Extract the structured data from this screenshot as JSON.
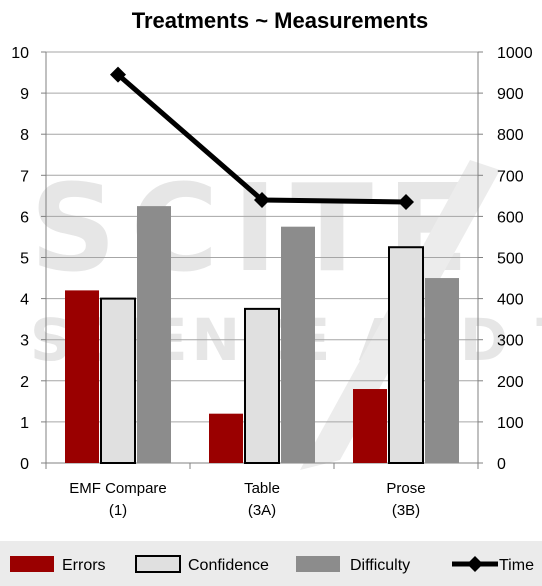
{
  "chart_data": {
    "type": "bar",
    "title": "Treatments ~ Measurements",
    "categories": [
      [
        "EMF Compare",
        "(1)"
      ],
      [
        "Table",
        "(3A)"
      ],
      [
        "Prose",
        "(3B)"
      ]
    ],
    "y_left": {
      "ylim": [
        0,
        10
      ],
      "ticks": [
        0,
        1,
        2,
        3,
        4,
        5,
        6,
        7,
        8,
        9,
        10
      ]
    },
    "y_right": {
      "ylim": [
        0,
        1000
      ],
      "ticks": [
        0,
        100,
        200,
        300,
        400,
        500,
        600,
        700,
        800,
        900,
        1000
      ]
    },
    "series": [
      {
        "name": "Errors",
        "kind": "bar",
        "axis": "left",
        "color": "#9a0000",
        "values": [
          4.2,
          1.2,
          1.8
        ]
      },
      {
        "name": "Confidence",
        "kind": "bar",
        "axis": "left",
        "color": "#e0e0e0",
        "values": [
          4.0,
          3.75,
          5.25
        ]
      },
      {
        "name": "Difficulty",
        "kind": "bar",
        "axis": "left",
        "color": "#8c8c8c",
        "values": [
          6.25,
          5.75,
          4.5
        ]
      },
      {
        "name": "Time",
        "kind": "line",
        "axis": "right",
        "color": "#000000",
        "values": [
          945,
          640,
          635
        ]
      }
    ],
    "grid": true,
    "legend": "bottom"
  },
  "watermark": {
    "text1": "SCITE",
    "text2": "SCIENCE AND TECH"
  }
}
